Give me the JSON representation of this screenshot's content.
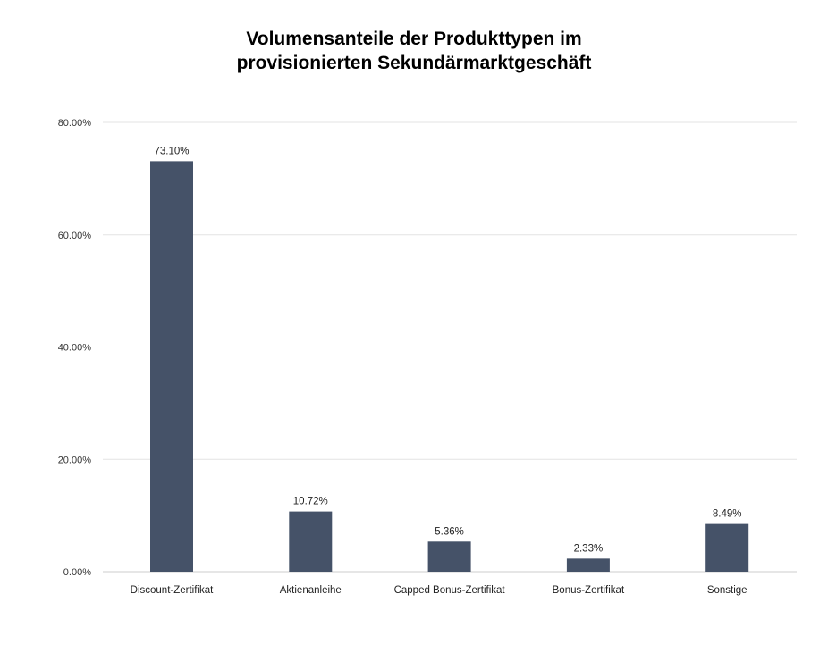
{
  "chart_data": {
    "type": "bar",
    "title_lines": [
      "Volumensanteile der Produkttypen im",
      "provisionierten Sekundärmarktgeschäft"
    ],
    "categories": [
      "Discount-Zertifikat",
      "Aktienanleihe",
      "Capped Bonus-Zertifikat",
      "Bonus-Zertifikat",
      "Sonstige"
    ],
    "values": [
      73.1,
      10.72,
      5.36,
      2.33,
      8.49
    ],
    "value_labels": [
      "73.10%",
      "10.72%",
      "5.36%",
      "2.33%",
      "8.49%"
    ],
    "yticks": [
      0,
      20,
      40,
      60,
      80
    ],
    "ytick_labels": [
      "0.00%",
      "20.00%",
      "40.00%",
      "60.00%",
      "80.00%"
    ],
    "ylim": [
      0,
      80
    ],
    "grid": true,
    "legend": "none",
    "bar_color": "#455268"
  }
}
